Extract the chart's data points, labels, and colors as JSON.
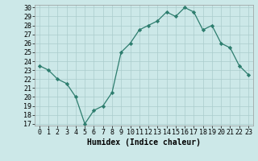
{
  "title": "",
  "xlabel": "Humidex (Indice chaleur)",
  "x": [
    0,
    1,
    2,
    3,
    4,
    5,
    6,
    7,
    8,
    9,
    10,
    11,
    12,
    13,
    14,
    15,
    16,
    17,
    18,
    19,
    20,
    21,
    22,
    23
  ],
  "y": [
    23.5,
    23.0,
    22.0,
    21.5,
    20.0,
    17.0,
    18.5,
    19.0,
    20.5,
    25.0,
    26.0,
    27.5,
    28.0,
    28.5,
    29.5,
    29.0,
    30.0,
    29.5,
    27.5,
    28.0,
    26.0,
    25.5,
    23.5,
    22.5
  ],
  "line_color": "#2d7d6e",
  "marker": "D",
  "marker_size": 2.2,
  "bg_color": "#cce8e8",
  "grid_color": "#aacccc",
  "ylim_min": 16.8,
  "ylim_max": 30.3,
  "yticks": [
    17,
    18,
    19,
    20,
    21,
    22,
    23,
    24,
    25,
    26,
    27,
    28,
    29,
    30
  ],
  "tick_fontsize": 6.0,
  "xlabel_fontsize": 7.0,
  "linewidth": 0.9
}
